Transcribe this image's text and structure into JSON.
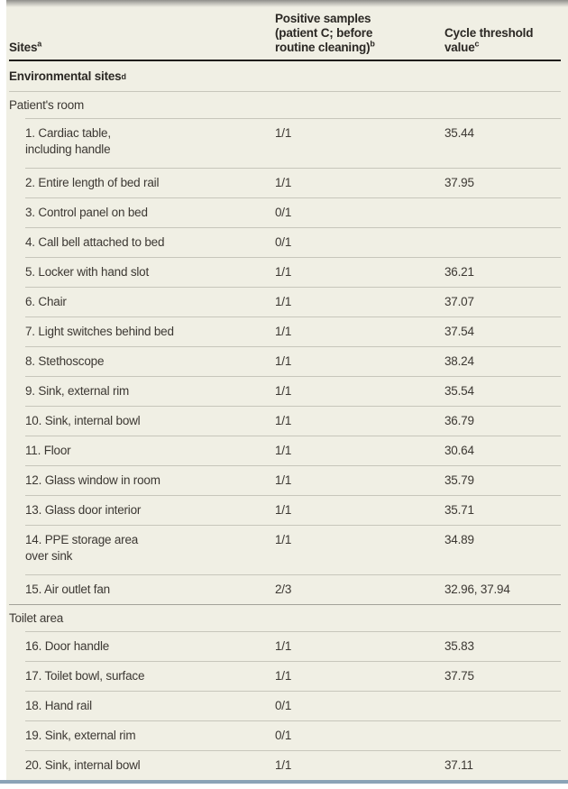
{
  "colors": {
    "panel_background": "#f0efe4",
    "text": "#3c3833",
    "bold_text": "#2b2824",
    "row_separator": "#c7c6bb",
    "section_divider": "#a3a299",
    "header_rule": "#1f1d1b",
    "bottom_bar": "#8ba3b7"
  },
  "table": {
    "columns": [
      {
        "label": "Sites",
        "sup": "a"
      },
      {
        "label": "Positive samples\n(patient C; before\nroutine cleaning)",
        "sup": "b"
      },
      {
        "label": "Cycle threshold\nvalue",
        "sup": "c"
      }
    ],
    "rows": [
      {
        "type": "section",
        "label": "Environmental sites",
        "sup": "d"
      },
      {
        "type": "subsection",
        "label": "Patient's room"
      },
      {
        "type": "data",
        "lines": 2,
        "site": "1. Cardiac table,\nincluding handle",
        "positive": "1/1",
        "ct": "35.44"
      },
      {
        "type": "data",
        "lines": 1,
        "site": "2. Entire length of bed rail",
        "positive": "1/1",
        "ct": "37.95"
      },
      {
        "type": "data",
        "lines": 1,
        "site": "3. Control panel on bed",
        "positive": "0/1",
        "ct": ""
      },
      {
        "type": "data",
        "lines": 1,
        "site": "4. Call bell attached to bed",
        "positive": "0/1",
        "ct": ""
      },
      {
        "type": "data",
        "lines": 1,
        "site": "5. Locker with hand slot",
        "positive": "1/1",
        "ct": "36.21"
      },
      {
        "type": "data",
        "lines": 1,
        "site": "6. Chair",
        "positive": "1/1",
        "ct": "37.07"
      },
      {
        "type": "data",
        "lines": 1,
        "site": "7. Light switches behind bed",
        "positive": "1/1",
        "ct": "37.54"
      },
      {
        "type": "data",
        "lines": 1,
        "site": "8. Stethoscope",
        "positive": "1/1",
        "ct": "38.24"
      },
      {
        "type": "data",
        "lines": 1,
        "site": "9. Sink, external rim",
        "positive": "1/1",
        "ct": "35.54"
      },
      {
        "type": "data",
        "lines": 1,
        "site": "10. Sink, internal bowl",
        "positive": "1/1",
        "ct": "36.79"
      },
      {
        "type": "data",
        "lines": 1,
        "site": "11. Floor",
        "positive": "1/1",
        "ct": "30.64"
      },
      {
        "type": "data",
        "lines": 1,
        "site": "12. Glass window in room",
        "positive": "1/1",
        "ct": "35.79"
      },
      {
        "type": "data",
        "lines": 1,
        "site": "13. Glass door interior",
        "positive": "1/1",
        "ct": "35.71"
      },
      {
        "type": "data",
        "lines": 2,
        "site": "14. PPE storage area\nover sink",
        "positive": "1/1",
        "ct": "34.89"
      },
      {
        "type": "data",
        "lines": 1,
        "site": "15. Air outlet fan",
        "positive": "2/3",
        "ct": "32.96, 37.94"
      },
      {
        "type": "subsection",
        "label": "Toilet area"
      },
      {
        "type": "data",
        "lines": 1,
        "site": "16. Door handle",
        "positive": "1/1",
        "ct": "35.83"
      },
      {
        "type": "data",
        "lines": 1,
        "site": "17. Toilet bowl, surface",
        "positive": "1/1",
        "ct": "37.75"
      },
      {
        "type": "data",
        "lines": 1,
        "site": "18. Hand rail",
        "positive": "0/1",
        "ct": ""
      },
      {
        "type": "data",
        "lines": 1,
        "site": "19. Sink, external rim",
        "positive": "0/1",
        "ct": ""
      },
      {
        "type": "data",
        "lines": 1,
        "site": "20. Sink, internal bowl",
        "positive": "1/1",
        "ct": "37.11"
      }
    ]
  }
}
